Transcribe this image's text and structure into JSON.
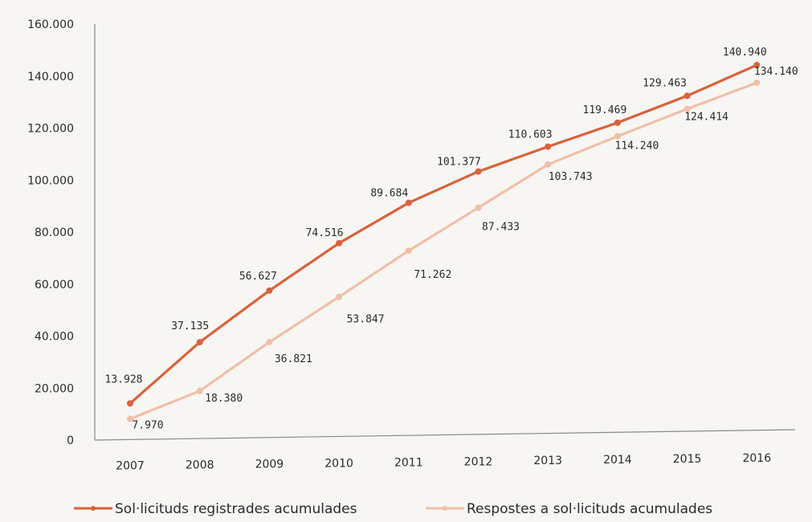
{
  "chart_data": {
    "type": "line",
    "title": "",
    "xlabel": "",
    "ylabel": "",
    "categories": [
      "2007",
      "2008",
      "2009",
      "2010",
      "2011",
      "2012",
      "2013",
      "2014",
      "2015",
      "2016"
    ],
    "ylim": [
      0,
      160000
    ],
    "yticks": [
      0,
      20000,
      40000,
      60000,
      80000,
      100000,
      120000,
      140000,
      160000
    ],
    "ytick_labels": [
      "0",
      "20.000",
      "40.000",
      "60.000",
      "80.000",
      "100.000",
      "120.000",
      "140.000",
      "160.000"
    ],
    "grid": false,
    "legend_position": "bottom",
    "series": [
      {
        "name": "Sol·licituds registrades acumulades",
        "color": "#d9623b",
        "values": [
          13928,
          37135,
          56627,
          74516,
          89684,
          101377,
          110603,
          119469,
          129463,
          140940
        ],
        "labels": [
          "13.928",
          "37.135",
          "56.627",
          "74.516",
          "89.684",
          "101.377",
          "110.603",
          "119.469",
          "129.463",
          "140.940"
        ]
      },
      {
        "name": "Respostes a sol·licituds acumulades",
        "color": "#f0bfa8",
        "values": [
          7970,
          18380,
          36821,
          53847,
          71262,
          87433,
          103743,
          114240,
          124414,
          134140
        ],
        "labels": [
          "7.970",
          "18.380",
          "36.821",
          "53.847",
          "71.262",
          "87.433",
          "103.743",
          "114.240",
          "124.414",
          "134.140"
        ]
      }
    ]
  }
}
